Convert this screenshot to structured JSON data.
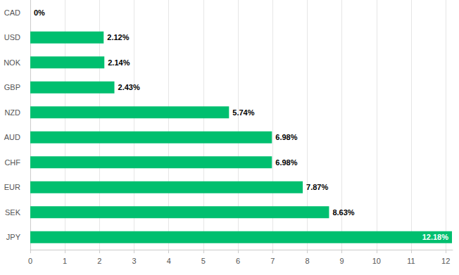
{
  "chart_data": {
    "type": "bar",
    "orientation": "horizontal",
    "categories": [
      "CAD",
      "USD",
      "NOK",
      "GBP",
      "NZD",
      "AUD",
      "CHF",
      "EUR",
      "SEK",
      "JPY"
    ],
    "values": [
      0,
      2.12,
      2.14,
      2.43,
      5.74,
      6.98,
      6.98,
      7.87,
      8.63,
      12.18
    ],
    "value_labels": [
      "0%",
      "2.12%",
      "2.14%",
      "2.43%",
      "5.74%",
      "6.98%",
      "6.98%",
      "7.87%",
      "8.63%",
      "12.18%"
    ],
    "color": "#00bf6f",
    "xlim": [
      0,
      12.2
    ],
    "xticks": [
      0,
      1,
      2,
      3,
      4,
      5,
      6,
      7,
      8,
      9,
      10,
      11,
      12
    ],
    "grid": true,
    "data_labels": true
  }
}
